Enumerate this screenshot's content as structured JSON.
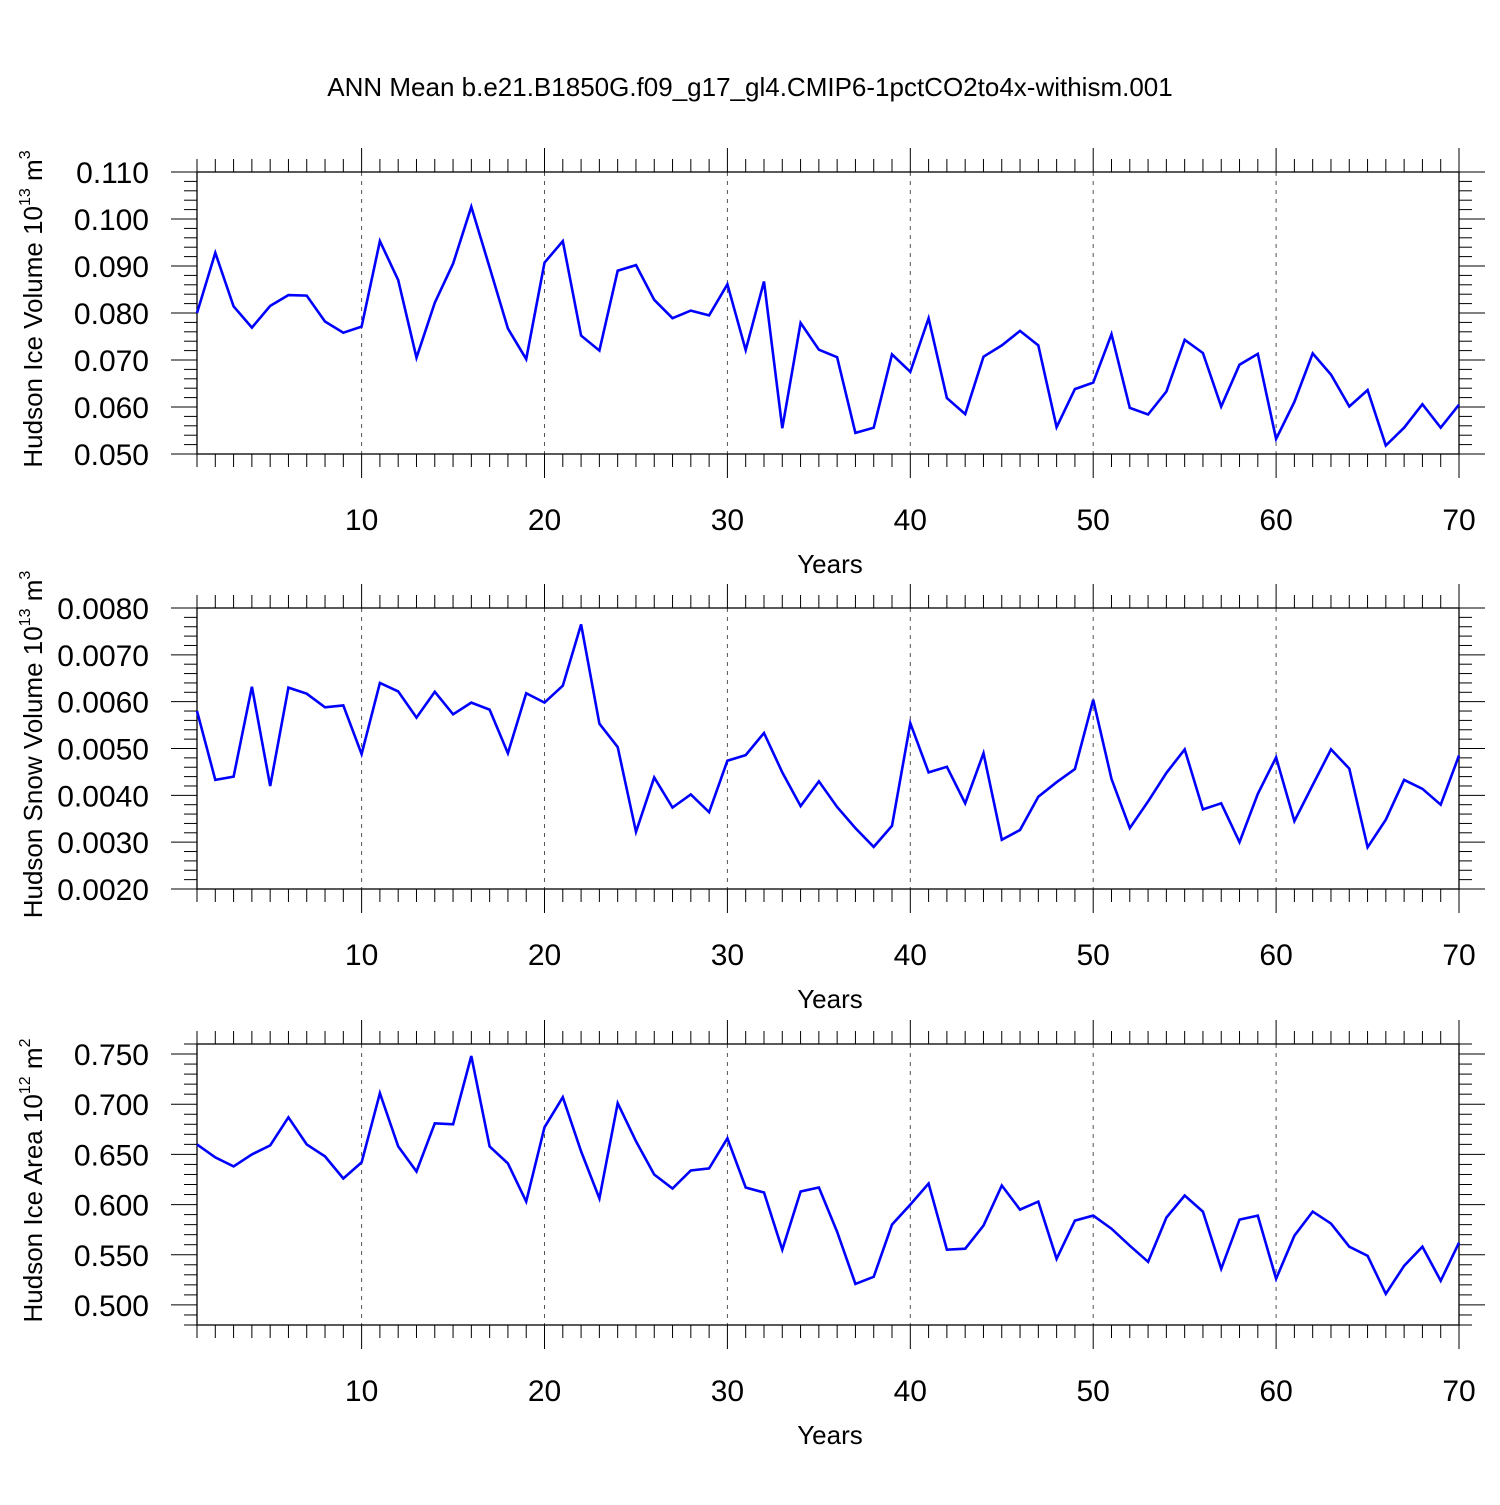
{
  "figure": {
    "title": "ANN Mean b.e21.B1850G.f09_g17_gl4.CMIP6-1pctCO2to4x-withism.001"
  },
  "chart_data": [
    {
      "type": "line",
      "xlabel": "Years",
      "ylabel": "Hudson Ice Volume 10",
      "ylabel_exp": "13",
      "ylabel_unit": " m",
      "ylabel_unit_exp": "3",
      "xlim": [
        1,
        70
      ],
      "ylim": [
        0.05,
        0.11
      ],
      "x_ticks": [
        10,
        20,
        30,
        40,
        50,
        60,
        70
      ],
      "y_ticks": [
        0.05,
        0.06,
        0.07,
        0.08,
        0.09,
        0.1,
        0.11
      ],
      "y_tick_labels": [
        "0.050",
        "0.060",
        "0.070",
        "0.080",
        "0.090",
        "0.100",
        "0.110"
      ],
      "grid": "vertical dashed at major x ticks",
      "color": "#0000ff",
      "x": [
        1,
        2,
        3,
        4,
        5,
        6,
        7,
        8,
        9,
        10,
        11,
        12,
        13,
        14,
        15,
        16,
        17,
        18,
        19,
        20,
        21,
        22,
        23,
        24,
        25,
        26,
        27,
        28,
        29,
        30,
        31,
        32,
        33,
        34,
        35,
        36,
        37,
        38,
        39,
        40,
        41,
        42,
        43,
        44,
        45,
        46,
        47,
        48,
        49,
        50,
        51,
        52,
        53,
        54,
        55,
        56,
        57,
        58,
        59,
        60,
        61,
        62,
        63,
        64,
        65,
        66,
        67,
        68,
        69,
        70
      ],
      "values": [
        0.08,
        0.0928,
        0.0814,
        0.0769,
        0.0815,
        0.0838,
        0.0837,
        0.0782,
        0.0758,
        0.0771,
        0.0953,
        0.087,
        0.0705,
        0.0822,
        0.0905,
        0.1026,
        0.0897,
        0.0767,
        0.0702,
        0.0907,
        0.0953,
        0.0752,
        0.072,
        0.089,
        0.0902,
        0.0828,
        0.0789,
        0.0805,
        0.0795,
        0.0861,
        0.0721,
        0.0867,
        0.0555,
        0.0779,
        0.0722,
        0.0706,
        0.0545,
        0.0556,
        0.0712,
        0.0675,
        0.0789,
        0.0619,
        0.0585,
        0.0707,
        0.0731,
        0.0762,
        0.0731,
        0.0557,
        0.0638,
        0.0652,
        0.0755,
        0.0598,
        0.0584,
        0.0633,
        0.0743,
        0.0715,
        0.0601,
        0.069,
        0.0713,
        0.0532,
        0.0611,
        0.0714,
        0.0669,
        0.0601,
        0.0636,
        0.0518,
        0.0556,
        0.0606,
        0.0556,
        0.0605
      ]
    },
    {
      "type": "line",
      "xlabel": "Years",
      "ylabel": "Hudson Snow Volume 10",
      "ylabel_exp": "13",
      "ylabel_unit": " m",
      "ylabel_unit_exp": "3",
      "xlim": [
        1,
        70
      ],
      "ylim": [
        0.002,
        0.008
      ],
      "x_ticks": [
        10,
        20,
        30,
        40,
        50,
        60,
        70
      ],
      "y_ticks": [
        0.002,
        0.003,
        0.004,
        0.005,
        0.006,
        0.007,
        0.008
      ],
      "y_tick_labels": [
        "0.0020",
        "0.0030",
        "0.0040",
        "0.0050",
        "0.0060",
        "0.0070",
        "0.0080"
      ],
      "grid": "vertical dashed at major x ticks",
      "color": "#0000ff",
      "x": [
        1,
        2,
        3,
        4,
        5,
        6,
        7,
        8,
        9,
        10,
        11,
        12,
        13,
        14,
        15,
        16,
        17,
        18,
        19,
        20,
        21,
        22,
        23,
        24,
        25,
        26,
        27,
        28,
        29,
        30,
        31,
        32,
        33,
        34,
        35,
        36,
        37,
        38,
        39,
        40,
        41,
        42,
        43,
        44,
        45,
        46,
        47,
        48,
        49,
        50,
        51,
        52,
        53,
        54,
        55,
        56,
        57,
        58,
        59,
        60,
        61,
        62,
        63,
        64,
        65,
        66,
        67,
        68,
        69,
        70
      ],
      "values": [
        0.0058,
        0.00433,
        0.0044,
        0.00632,
        0.0042,
        0.0063,
        0.00617,
        0.00588,
        0.00592,
        0.00488,
        0.0064,
        0.00622,
        0.00566,
        0.00621,
        0.00573,
        0.00598,
        0.00583,
        0.0049,
        0.00618,
        0.00598,
        0.00634,
        0.00765,
        0.00553,
        0.00503,
        0.00322,
        0.00438,
        0.00374,
        0.00402,
        0.00364,
        0.00474,
        0.00486,
        0.00533,
        0.00449,
        0.00377,
        0.0043,
        0.00375,
        0.0033,
        0.0029,
        0.00335,
        0.00554,
        0.00449,
        0.00461,
        0.00383,
        0.0049,
        0.00305,
        0.00326,
        0.00397,
        0.00428,
        0.00456,
        0.00604,
        0.00435,
        0.0033,
        0.00387,
        0.00448,
        0.00498,
        0.0037,
        0.00383,
        0.003,
        0.00403,
        0.00481,
        0.00345,
        0.00422,
        0.00498,
        0.00457,
        0.00289,
        0.00348,
        0.00433,
        0.00414,
        0.0038,
        0.00485
      ]
    },
    {
      "type": "line",
      "xlabel": "Years",
      "ylabel": "Hudson Ice Area 10",
      "ylabel_exp": "12",
      "ylabel_unit": " m",
      "ylabel_unit_exp": "2",
      "xlim": [
        1,
        70
      ],
      "ylim": [
        0.48,
        0.76
      ],
      "x_ticks": [
        10,
        20,
        30,
        40,
        50,
        60,
        70
      ],
      "y_ticks": [
        0.5,
        0.55,
        0.6,
        0.65,
        0.7,
        0.75
      ],
      "y_tick_labels": [
        "0.500",
        "0.550",
        "0.600",
        "0.650",
        "0.700",
        "0.750"
      ],
      "grid": "vertical dashed at major x ticks",
      "color": "#0000ff",
      "x": [
        1,
        2,
        3,
        4,
        5,
        6,
        7,
        8,
        9,
        10,
        11,
        12,
        13,
        14,
        15,
        16,
        17,
        18,
        19,
        20,
        21,
        22,
        23,
        24,
        25,
        26,
        27,
        28,
        29,
        30,
        31,
        32,
        33,
        34,
        35,
        36,
        37,
        38,
        39,
        40,
        41,
        42,
        43,
        44,
        45,
        46,
        47,
        48,
        49,
        50,
        51,
        52,
        53,
        54,
        55,
        56,
        57,
        58,
        59,
        60,
        61,
        62,
        63,
        64,
        65,
        66,
        67,
        68,
        69,
        70
      ],
      "values": [
        0.66,
        0.647,
        0.638,
        0.65,
        0.659,
        0.687,
        0.66,
        0.648,
        0.626,
        0.642,
        0.711,
        0.658,
        0.633,
        0.681,
        0.68,
        0.748,
        0.658,
        0.641,
        0.603,
        0.677,
        0.707,
        0.653,
        0.606,
        0.701,
        0.663,
        0.63,
        0.616,
        0.634,
        0.636,
        0.666,
        0.617,
        0.612,
        0.555,
        0.613,
        0.617,
        0.573,
        0.521,
        0.528,
        0.58,
        0.6,
        0.621,
        0.555,
        0.556,
        0.579,
        0.619,
        0.595,
        0.603,
        0.546,
        0.584,
        0.589,
        0.576,
        0.559,
        0.543,
        0.587,
        0.609,
        0.593,
        0.536,
        0.585,
        0.589,
        0.526,
        0.569,
        0.593,
        0.581,
        0.558,
        0.549,
        0.511,
        0.539,
        0.558,
        0.524,
        0.562
      ]
    }
  ]
}
